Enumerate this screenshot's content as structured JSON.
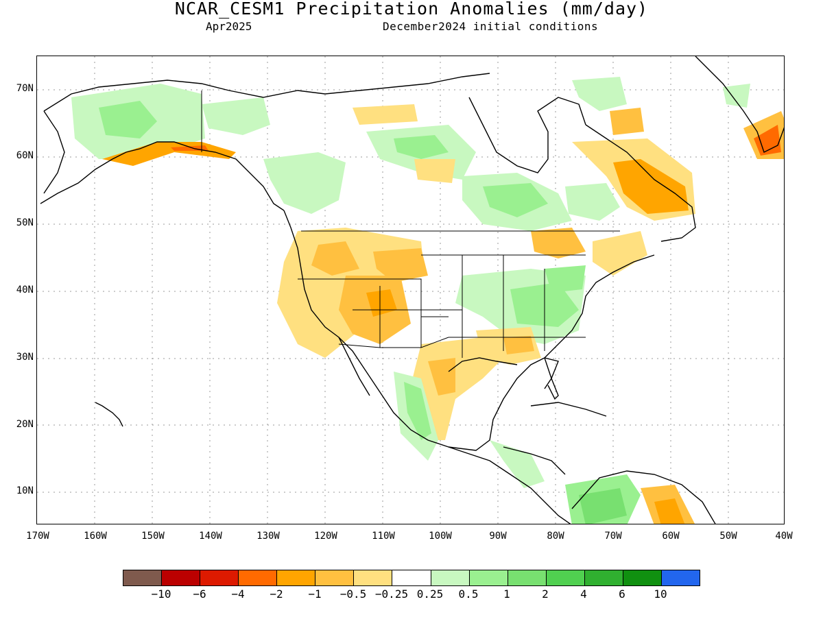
{
  "title": "NCAR_CESM1 Precipitation Anomalies (mm/day)",
  "subtitle_left": "Apr2025",
  "subtitle_right": "December2024 initial conditions",
  "lat_labels": [
    "70N",
    "60N",
    "50N",
    "40N",
    "30N",
    "20N",
    "10N"
  ],
  "lon_labels": [
    "170W",
    "160W",
    "150W",
    "140W",
    "130W",
    "120W",
    "110W",
    "100W",
    "90W",
    "80W",
    "70W",
    "60W",
    "50W",
    "40W"
  ],
  "colorbar": {
    "colors": [
      "#7f5a4d",
      "#bb0000",
      "#dd1a00",
      "#ff6a00",
      "#ffa500",
      "#ffc040",
      "#ffe080",
      "#ffffff",
      "#c8f8c0",
      "#9af090",
      "#78e070",
      "#50d050",
      "#30b030",
      "#109010",
      "#2266ee"
    ],
    "labels": [
      "−10",
      "−6",
      "−4",
      "−2",
      "−1",
      "−0.5",
      "−0.25",
      "0.25",
      "0.5",
      "1",
      "2",
      "4",
      "6",
      "10"
    ]
  },
  "legend_colors": {
    "light_green": "#c8f8c0",
    "mid_green": "#8ee88a",
    "green": "#5ed85a",
    "light_orange": "#ffe080",
    "orange": "#ffc040",
    "dark_orange": "#ffa500",
    "red_orange": "#ff6a00"
  }
}
